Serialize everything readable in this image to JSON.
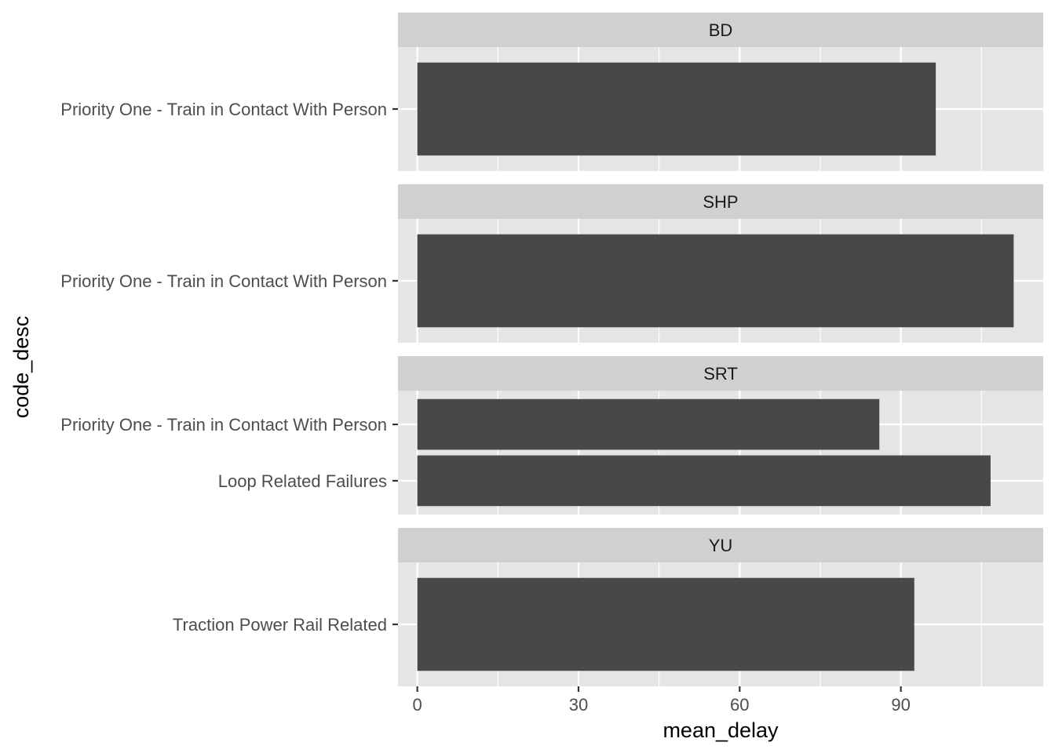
{
  "chart_data": {
    "type": "bar",
    "orientation": "horizontal",
    "xlabel": "mean_delay",
    "ylabel": "code_desc",
    "xlim": [
      -3.6,
      116.5
    ],
    "xticks": [
      0,
      30,
      60,
      90
    ],
    "grid": true,
    "legend": "none",
    "colors": {
      "bar": "#484848",
      "panel_bg": "#e5e5e5",
      "strip_bg": "#d0d0d0",
      "grid": "#ffffff"
    },
    "facets": [
      {
        "label": "BD",
        "categories": [
          "Priority One - Train in Contact With Person"
        ],
        "values": [
          96.5
        ]
      },
      {
        "label": "SHP",
        "categories": [
          "Priority One - Train in Contact With Person"
        ],
        "values": [
          111
        ]
      },
      {
        "label": "SRT",
        "categories": [
          "Priority One - Train in Contact With Person",
          "Loop Related Failures"
        ],
        "values": [
          86,
          106.7
        ]
      },
      {
        "label": "YU",
        "categories": [
          "Traction Power Rail Related"
        ],
        "values": [
          92.5
        ]
      }
    ]
  }
}
